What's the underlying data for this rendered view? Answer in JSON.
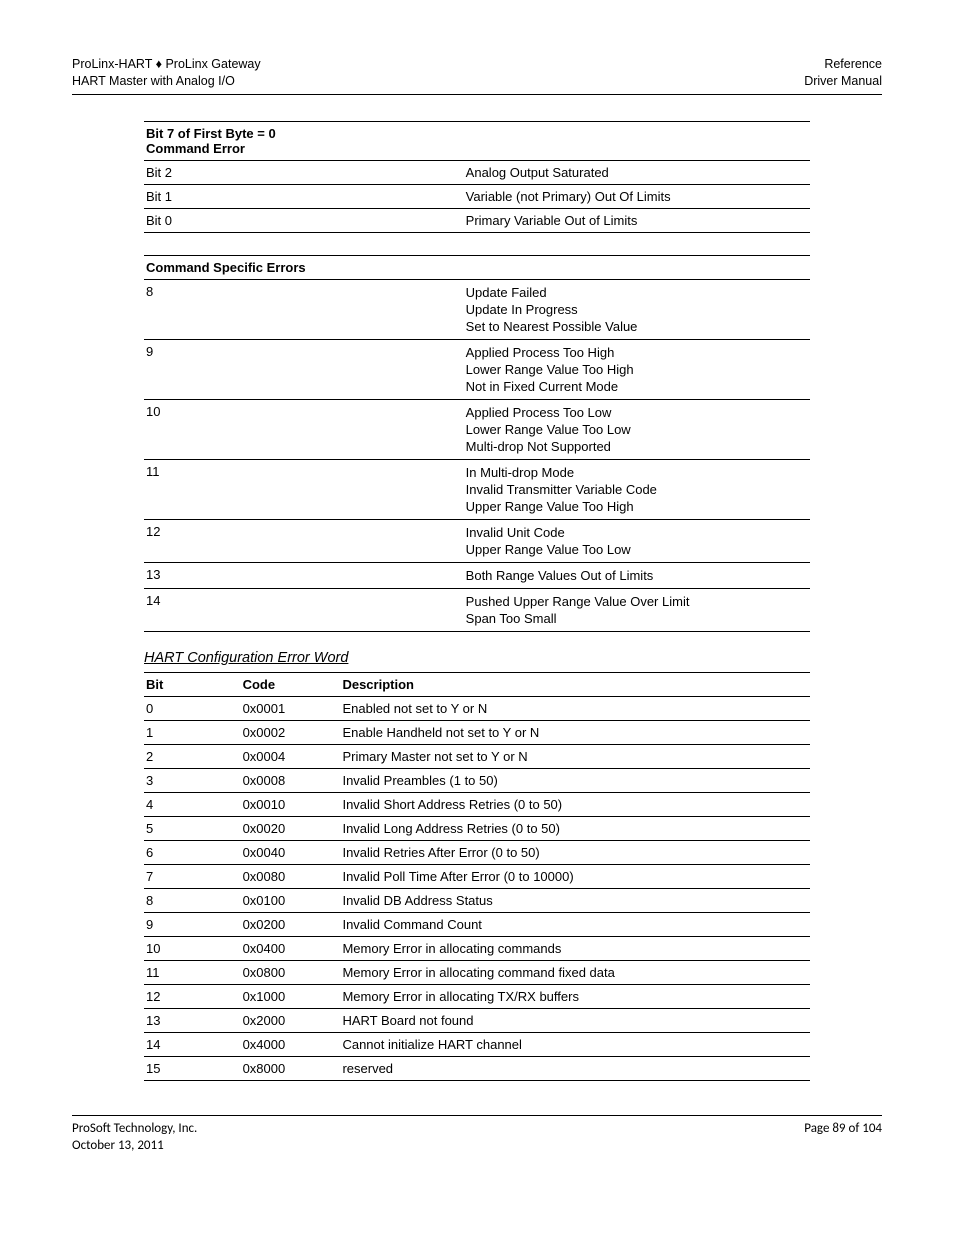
{
  "header": {
    "left1": "ProLinx-HART ♦ ProLinx Gateway",
    "left2": "HART Master with Analog I/O",
    "right1": "Reference",
    "right2": "Driver Manual"
  },
  "tableA": {
    "caption1": "Bit 7 of First Byte = 0",
    "caption2": "Command Error",
    "rows": [
      {
        "c1": "Bit 2",
        "c2": "Analog Output Saturated"
      },
      {
        "c1": "Bit 1",
        "c2": "Variable (not Primary) Out Of Limits"
      },
      {
        "c1": "Bit 0",
        "c2": "Primary Variable Out of Limits"
      }
    ]
  },
  "tableB": {
    "caption": "Command Specific Errors",
    "rows": [
      {
        "c1": "8",
        "c2": [
          "Update Failed",
          "Update In Progress",
          "Set to Nearest Possible Value"
        ]
      },
      {
        "c1": "9",
        "c2": [
          "Applied Process Too High",
          "Lower Range Value Too High",
          "Not in Fixed Current Mode"
        ]
      },
      {
        "c1": "10",
        "c2": [
          "Applied Process Too Low",
          "Lower Range Value Too Low",
          "Multi-drop Not Supported"
        ]
      },
      {
        "c1": "11",
        "c2": [
          "In Multi-drop Mode",
          "Invalid Transmitter Variable Code",
          "Upper Range Value Too High"
        ]
      },
      {
        "c1": "12",
        "c2": [
          "Invalid Unit Code",
          "Upper Range Value Too Low"
        ]
      },
      {
        "c1": "13",
        "c2": [
          "Both Range Values Out of Limits"
        ]
      },
      {
        "c1": "14",
        "c2": [
          "Pushed Upper Range Value Over Limit",
          "Span Too Small"
        ]
      }
    ]
  },
  "sectionTitle": "HART Configuration Error Word",
  "tableC": {
    "columns": [
      "Bit",
      "Code",
      "Description"
    ],
    "rows": [
      {
        "bit": "0",
        "code": "0x0001",
        "desc": "Enabled not set to Y or N"
      },
      {
        "bit": "1",
        "code": "0x0002",
        "desc": "Enable Handheld not set to Y or N"
      },
      {
        "bit": "2",
        "code": "0x0004",
        "desc": "Primary Master not set to Y or N"
      },
      {
        "bit": "3",
        "code": "0x0008",
        "desc": "Invalid Preambles (1 to 50)"
      },
      {
        "bit": "4",
        "code": "0x0010",
        "desc": "Invalid Short Address Retries (0 to 50)"
      },
      {
        "bit": "5",
        "code": "0x0020",
        "desc": "Invalid Long Address Retries (0 to 50)"
      },
      {
        "bit": "6",
        "code": "0x0040",
        "desc": "Invalid Retries After Error (0 to 50)"
      },
      {
        "bit": "7",
        "code": "0x0080",
        "desc": "Invalid Poll Time After Error (0 to 10000)"
      },
      {
        "bit": "8",
        "code": "0x0100",
        "desc": "Invalid DB Address Status"
      },
      {
        "bit": "9",
        "code": "0x0200",
        "desc": "Invalid Command Count"
      },
      {
        "bit": "10",
        "code": "0x0400",
        "desc": "Memory Error in allocating commands"
      },
      {
        "bit": "11",
        "code": "0x0800",
        "desc": "Memory Error in allocating command fixed data"
      },
      {
        "bit": "12",
        "code": "0x1000",
        "desc": "Memory Error in allocating TX/RX buffers"
      },
      {
        "bit": "13",
        "code": "0x2000",
        "desc": "HART Board not found"
      },
      {
        "bit": "14",
        "code": "0x4000",
        "desc": "Cannot initialize HART channel"
      },
      {
        "bit": "15",
        "code": "0x8000",
        "desc": "reserved"
      }
    ]
  },
  "footer": {
    "left1": "ProSoft Technology, Inc.",
    "left2": "October 13, 2011",
    "right1": "Page 89 of 104"
  }
}
